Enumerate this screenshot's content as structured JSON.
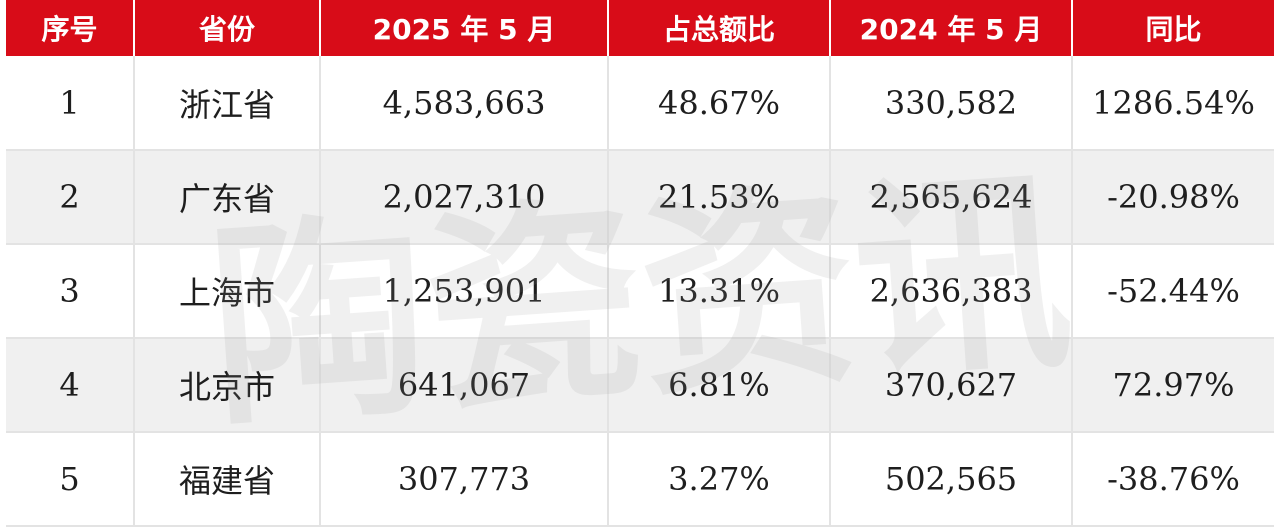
{
  "table": {
    "headers": [
      "序号",
      "省份",
      "2025 年 5 月",
      "占总额比",
      "2024 年 5 月",
      "同比"
    ],
    "rows": [
      [
        "1",
        "浙江省",
        "4,583,663",
        "48.67%",
        "330,582",
        "1286.54%"
      ],
      [
        "2",
        "广东省",
        "2,027,310",
        "21.53%",
        "2,565,624",
        "-20.98%"
      ],
      [
        "3",
        "上海市",
        "1,253,901",
        "13.31%",
        "2,636,383",
        "-52.44%"
      ],
      [
        "4",
        "北京市",
        "641,067",
        "6.81%",
        "370,627",
        "72.97%"
      ],
      [
        "5",
        "福建省",
        "307,773",
        "3.27%",
        "502,565",
        "-38.76%"
      ]
    ]
  },
  "watermark": {
    "text": "陶瓷资讯"
  },
  "colors": {
    "header_bg": "#d80c18",
    "header_text": "#ffffff",
    "row_alt_bg": "#f0f0f0",
    "grid_line": "#e3e3e3",
    "watermark": "#9a9a9a"
  }
}
